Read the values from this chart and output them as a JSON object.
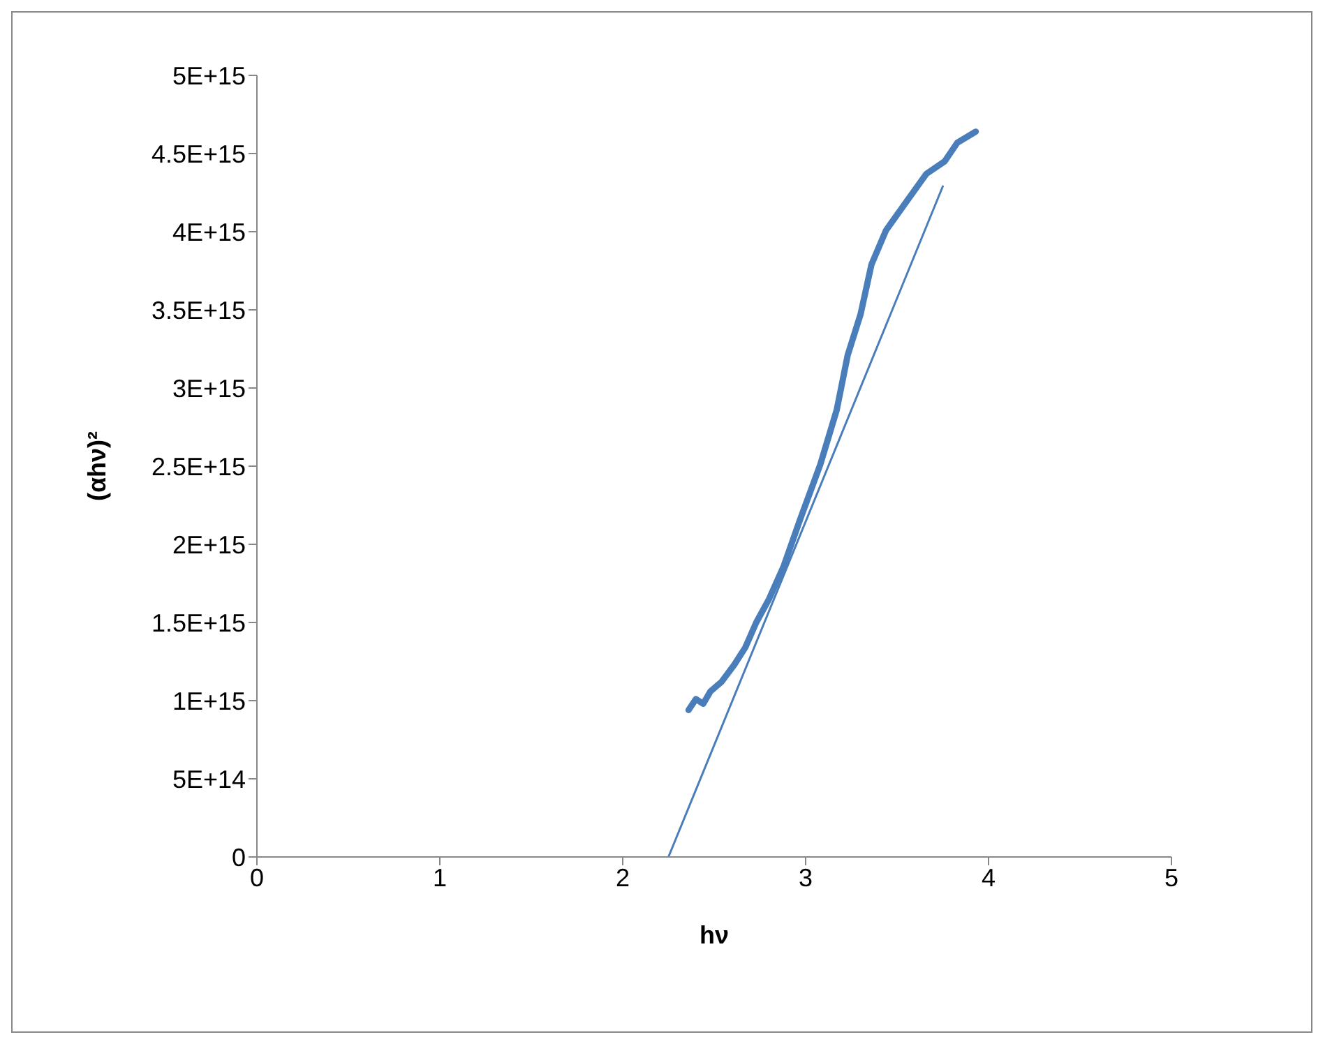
{
  "chart_data": {
    "type": "line",
    "xlabel": "hν",
    "ylabel": "(αhν)²",
    "xlim": [
      0,
      5
    ],
    "xticks": [
      0,
      1,
      2,
      3,
      4,
      5
    ],
    "ylim": [
      0,
      5000000000000000.0
    ],
    "yticks": [
      0,
      {
        "value": 500000000000000.0,
        "label": "5E+14"
      },
      {
        "value": 1000000000000000.0,
        "label": "1E+15"
      },
      {
        "value": 1500000000000000.0,
        "label": "1.5E+15"
      },
      {
        "value": 2000000000000000.0,
        "label": "2E+15"
      },
      {
        "value": 2500000000000000.0,
        "label": "2.5E+15"
      },
      {
        "value": 3000000000000000.0,
        "label": "3E+15"
      },
      {
        "value": 3500000000000000.0,
        "label": "3.5E+15"
      },
      {
        "value": 4000000000000000.0,
        "label": "4E+15"
      },
      {
        "value": 4500000000000000.0,
        "label": "4.5E+15"
      },
      {
        "value": 5000000000000000.0,
        "label": "5E+15"
      }
    ],
    "grid": false,
    "marker": "none",
    "line_style": "solid",
    "series": [
      {
        "color": "#4a7ebb",
        "x": [
          2.36,
          2.4,
          2.44,
          2.48,
          2.54,
          2.61,
          2.67,
          2.73,
          2.8,
          2.88,
          2.97,
          3.08,
          3.17,
          3.23,
          3.3,
          3.36,
          3.44,
          3.55,
          3.66,
          3.76,
          3.83,
          3.93
        ],
        "values": [
          940000000000000.0,
          1010000000000000.0,
          980000000000000.0,
          1060000000000000.0,
          1120000000000000.0,
          1230000000000000.0,
          1340000000000000.0,
          1500000000000000.0,
          1650000000000000.0,
          1860000000000000.0,
          2160000000000000.0,
          2510000000000000.0,
          2860000000000000.0,
          3210000000000000.0,
          3470000000000000.0,
          3790000000000000.0,
          4010000000000000.0,
          4190000000000000.0,
          4370000000000000.0,
          4450000000000000.0,
          4570000000000000.0,
          4640000000000000.0
        ]
      },
      {
        "color": "#4a7ebb",
        "x": [
          2.25,
          3.75
        ],
        "values": [
          0,
          4290000000000000.0
        ]
      }
    ]
  }
}
